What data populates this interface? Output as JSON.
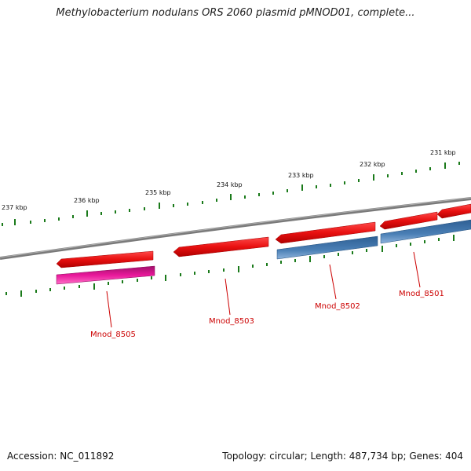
{
  "title": "Methylobacterium nodulans ORS 2060 plasmid pMNOD01, complete...",
  "footer": {
    "accession": "Accession: NC_011892",
    "summary": "Topology: circular; Length: 487,734 bp; Genes: 404"
  },
  "colors": {
    "backbone": "#808080",
    "tick": "#1a7a1a",
    "gene_red": "#e81010",
    "gene_blue": "#4a7fb5",
    "gene_pink": "#e8189a",
    "label": "#cc0000"
  },
  "kbp_labels": [
    "231 kbp",
    "232 kbp",
    "233 kbp",
    "234 kbp",
    "235 kbp",
    "236 kbp",
    "237 kbp"
  ],
  "gene_labels": [
    "Mnod_8501",
    "Mnod_8502",
    "Mnod_8503",
    "Mnod_8505"
  ]
}
